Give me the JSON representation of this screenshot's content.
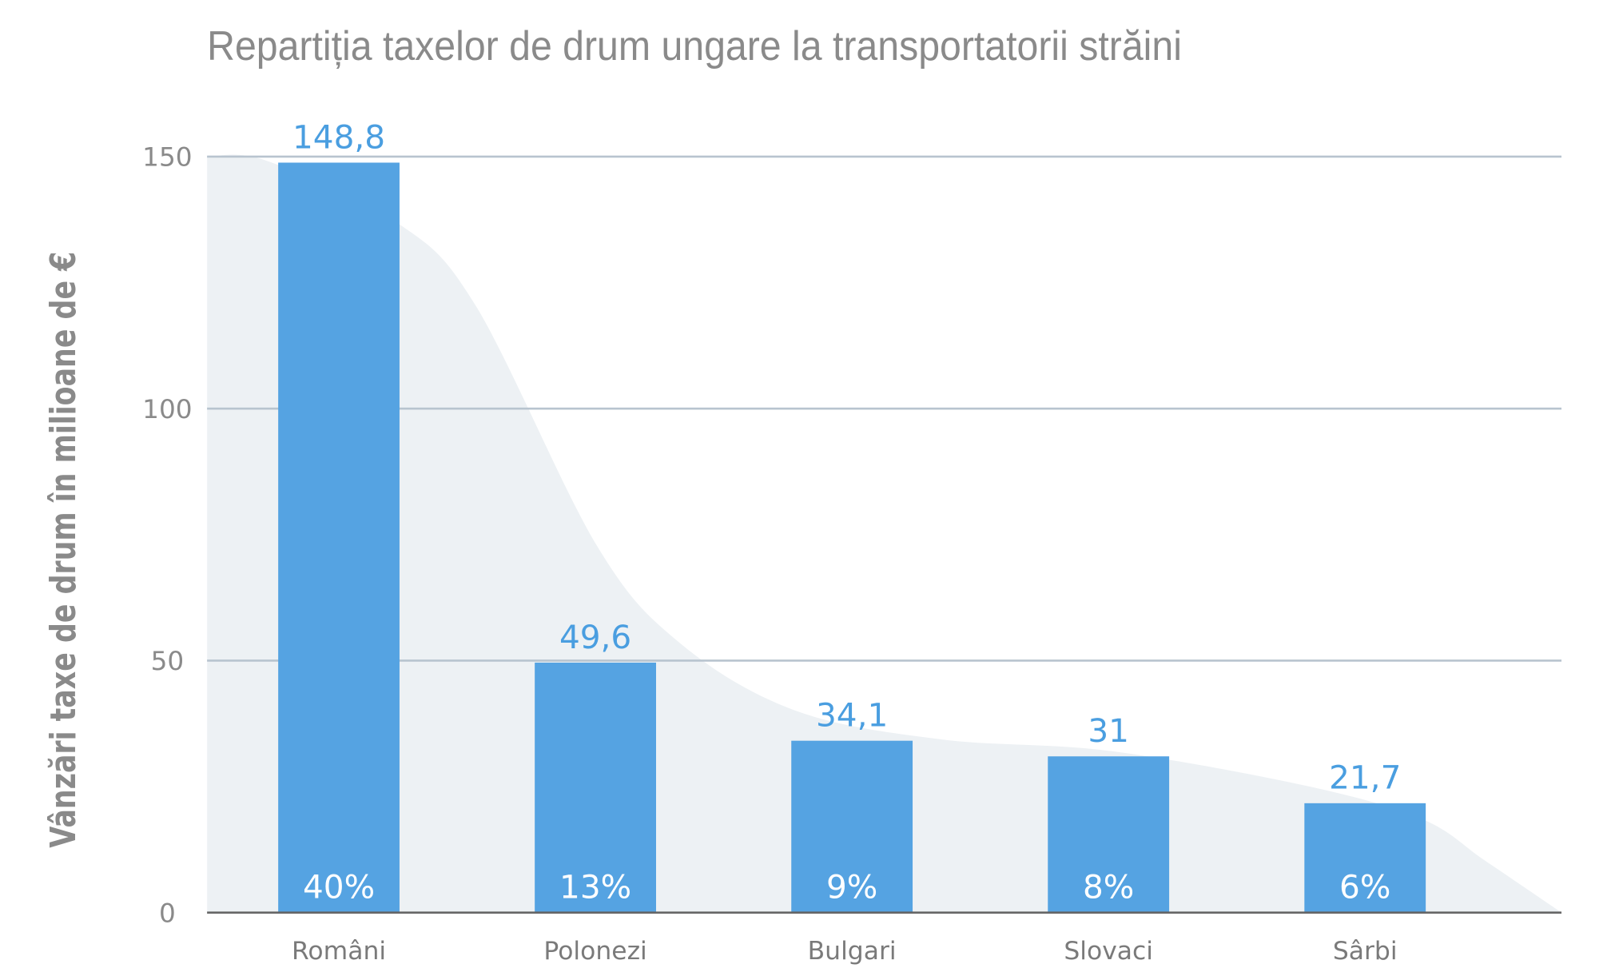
{
  "chart_data": {
    "type": "bar",
    "title": "Repartiția taxelor de drum ungare la transportatorii străini",
    "xlabel": "",
    "ylabel": "Vânzări taxe de drum în milioane de €",
    "categories": [
      "Români",
      "Polonezi",
      "Bulgari",
      "Slovaci",
      "Sârbi"
    ],
    "values": [
      148.8,
      49.6,
      34.1,
      31,
      21.7
    ],
    "value_labels": [
      "148,8",
      "49,6",
      "34,1",
      "31",
      "21,7"
    ],
    "percent_labels": [
      "40%",
      "13%",
      "9%",
      "8%",
      "6%"
    ],
    "ylim": [
      0,
      150
    ],
    "yticks": [
      0,
      50,
      100,
      150
    ],
    "grid": true,
    "colors": {
      "bar": "#55a3e2",
      "value_label": "#4a9ee0",
      "background_area": "#edf1f4",
      "grid": "#b8c4cf",
      "axis": "#666666",
      "text": "#8a8a8a"
    }
  }
}
